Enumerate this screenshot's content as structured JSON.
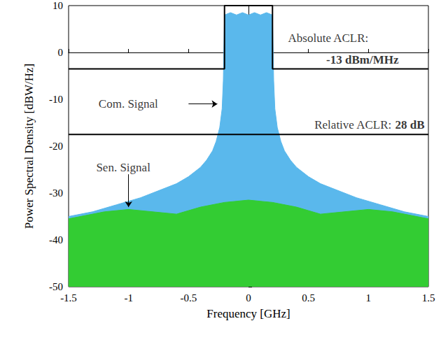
{
  "chart_data": {
    "type": "line",
    "x_label": "Frequency [GHz]",
    "y_label": "Power Spectral Density [dBW/Hz]",
    "xlim": [
      -1.5,
      1.5
    ],
    "xticks": [
      -1.5,
      -1,
      -0.5,
      0,
      0.5,
      1,
      1.5
    ],
    "ylim": [
      -50,
      10
    ],
    "yticks": [
      -50,
      -40,
      -30,
      -20,
      -10,
      0,
      10
    ],
    "grid": false,
    "annotations": [
      "Absolute ACLR:",
      "-13 dBm/MHz",
      "Com. Signal",
      "Relative ACLR:",
      "28 dB",
      "Sen. Signal"
    ],
    "series": [
      {
        "type": "area",
        "color": "#5ab8ec",
        "x": [
          -1.5,
          -1.3,
          -1.1,
          -0.9,
          -0.7,
          -0.6,
          -0.5,
          -0.4,
          -0.35,
          -0.3,
          -0.27,
          -0.24,
          -0.22,
          -0.21,
          -0.2,
          -0.15,
          -0.1,
          -0.05,
          0,
          0.05,
          0.1,
          0.15,
          0.2,
          0.21,
          0.22,
          0.24,
          0.27,
          0.3,
          0.35,
          0.4,
          0.5,
          0.6,
          0.7,
          0.9,
          1.1,
          1.3,
          1.5
        ],
        "values": [
          -35,
          -34,
          -32.5,
          -31,
          -29,
          -28,
          -26.5,
          -24.5,
          -23,
          -21,
          -19,
          -16,
          -12,
          -6,
          8,
          8.5,
          8,
          8.5,
          8,
          8.5,
          8,
          8.5,
          8,
          -6,
          -12,
          -16,
          -19,
          -21,
          -23,
          -24.5,
          -26.5,
          -28,
          -29,
          -31,
          -32.5,
          -34,
          -35
        ]
      },
      {
        "type": "area",
        "color": "#33cc33",
        "x": [
          -1.5,
          -1.2,
          -1,
          -0.8,
          -0.6,
          -0.4,
          -0.2,
          0,
          0.2,
          0.4,
          0.6,
          0.8,
          1,
          1.2,
          1.5
        ],
        "values": [
          -35.5,
          -34,
          -33.5,
          -34,
          -34.5,
          -33,
          -32,
          -31.5,
          -32,
          -33,
          -34.5,
          -34,
          -33.5,
          -34,
          -35.5
        ]
      },
      {
        "type": "line",
        "color": "#000000",
        "x": [
          -1.5,
          -0.2,
          -0.2,
          0.2,
          0.2,
          1.5
        ],
        "values": [
          -3.5,
          -3.5,
          10,
          10,
          -3.5,
          -3.5
        ]
      },
      {
        "type": "line",
        "color": "#000000",
        "x": [
          -1.5,
          1.5
        ],
        "values": [
          -17.5,
          -17.5
        ]
      }
    ]
  }
}
